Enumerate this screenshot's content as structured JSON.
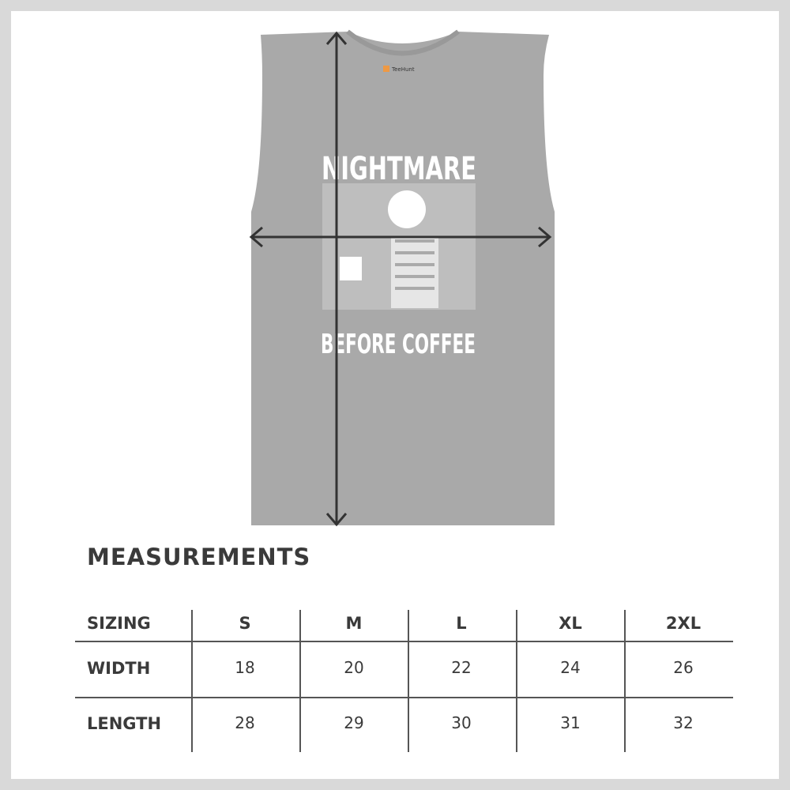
{
  "product": {
    "design_text_top": "NIGHTMARE",
    "design_text_bottom": "BEFORE COFFEE",
    "label_brand": "TeeHunt",
    "shirt_color": "#a9a9a9",
    "arrow_color": "#333333"
  },
  "measurements": {
    "title": "MEASUREMENTS",
    "header": [
      "SIZING",
      "S",
      "M",
      "L",
      "XL",
      "2XL"
    ],
    "rows": [
      {
        "label": "WIDTH",
        "values": [
          "18",
          "20",
          "22",
          "24",
          "26"
        ]
      },
      {
        "label": "LENGTH",
        "values": [
          "28",
          "29",
          "30",
          "31",
          "32"
        ]
      }
    ]
  }
}
